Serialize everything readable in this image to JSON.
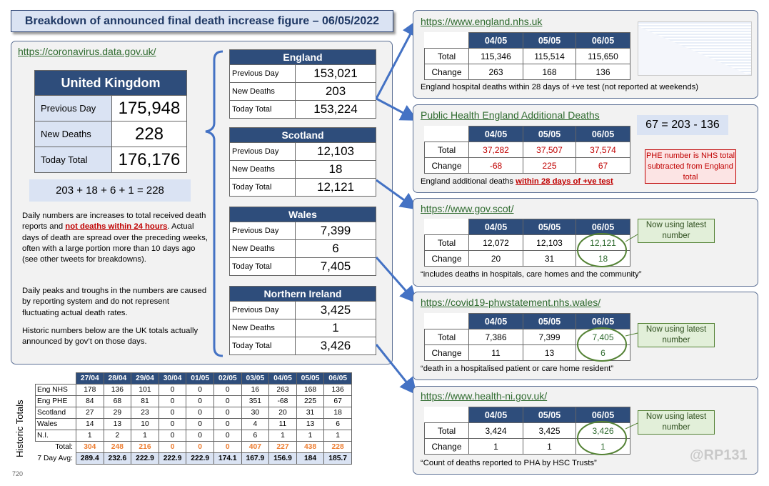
{
  "title": "Breakdown of announced final death increase figure – 06/05/2022",
  "uk": {
    "link": "https://coronavirus.data.gov.uk/",
    "header": "United Kingdom",
    "rows": [
      {
        "label": "Previous Day",
        "value": "175,948"
      },
      {
        "label": "New Deaths",
        "value": "228"
      },
      {
        "label": "Today Total",
        "value": "176,176"
      }
    ],
    "equation": "203 + 18 + 6 + 1 = 228"
  },
  "notes": {
    "p1_a": "Daily numbers are increases to total received death reports and ",
    "p1_red": "not deaths within 24 hours",
    "p1_b": ". Actual days of death are spread over the preceding weeks, often with a large portion more than 10 days ago (see other tweets for breakdowns).",
    "p2": "Daily peaks and troughs in the numbers are caused by reporting system and do not represent fluctuating actual death rates.",
    "p3": "Historic numbers below are the UK totals actually announced by gov’t on those days."
  },
  "nations": [
    {
      "name": "England",
      "rows": [
        {
          "label": "Previous Day",
          "value": "153,021"
        },
        {
          "label": "New Deaths",
          "value": "203"
        },
        {
          "label": "Today Total",
          "value": "153,224"
        }
      ]
    },
    {
      "name": "Scotland",
      "rows": [
        {
          "label": "Previous Day",
          "value": "12,103"
        },
        {
          "label": "New Deaths",
          "value": "18"
        },
        {
          "label": "Today Total",
          "value": "12,121"
        }
      ]
    },
    {
      "name": "Wales",
      "rows": [
        {
          "label": "Previous Day",
          "value": "7,399"
        },
        {
          "label": "New Deaths",
          "value": "6"
        },
        {
          "label": "Today Total",
          "value": "7,405"
        }
      ]
    },
    {
      "name": "Northern Ireland",
      "rows": [
        {
          "label": "Previous Day",
          "value": "3,425"
        },
        {
          "label": "New Deaths",
          "value": "1"
        },
        {
          "label": "Today Total",
          "value": "3,426"
        }
      ]
    }
  ],
  "sources": {
    "dates": [
      "04/05",
      "05/05",
      "06/05"
    ],
    "row_labels": [
      "Total",
      "Change"
    ],
    "nhs": {
      "link": "https://www.england.nhs.uk",
      "total": [
        "115,346",
        "115,514",
        "115,650"
      ],
      "change": [
        "263",
        "168",
        "136"
      ],
      "caption": "England hospital deaths within 28 days of +ve test (not reported at weekends)"
    },
    "phe": {
      "link": "Public Health England Additional Deaths",
      "total": [
        "37,282",
        "37,507",
        "37,574"
      ],
      "change": [
        "-68",
        "225",
        "67"
      ],
      "caption_a": "England additional deaths ",
      "caption_red": "within 28 days of +ve test",
      "formula": "67 = 203 - 136",
      "note": "PHE number is NHS total subtracted from England total"
    },
    "scot": {
      "link": "https://www.gov.scot/",
      "total": [
        "12,072",
        "12,103",
        "12,121"
      ],
      "change": [
        "20",
        "31",
        "18"
      ],
      "caption": "“includes deaths in hospitals, care homes and the community”"
    },
    "wales": {
      "link": "https://covid19-phwstatement.nhs.wales/",
      "total": [
        "7,386",
        "7,399",
        "7,405"
      ],
      "change": [
        "11",
        "13",
        "6"
      ],
      "caption": "“death in a hospitalised patient or care home resident”"
    },
    "ni": {
      "link": "https://www.health-ni.gov.uk/",
      "total": [
        "3,424",
        "3,425",
        "3,426"
      ],
      "change": [
        "1",
        "1",
        "1"
      ],
      "caption": "“Count of deaths reported to PHA by HSC Trusts”"
    },
    "badge": "Now using latest number"
  },
  "history": {
    "side_label": "Historic Totals",
    "dates": [
      "27/04",
      "28/04",
      "29/04",
      "30/04",
      "01/05",
      "02/05",
      "03/05",
      "04/05",
      "05/05",
      "06/05"
    ],
    "rows": [
      {
        "label": "Eng NHS",
        "values": [
          "178",
          "136",
          "101",
          "0",
          "0",
          "0",
          "16",
          "263",
          "168",
          "136"
        ]
      },
      {
        "label": "Eng PHE",
        "values": [
          "84",
          "68",
          "81",
          "0",
          "0",
          "0",
          "351",
          "-68",
          "225",
          "67"
        ]
      },
      {
        "label": "Scotland",
        "values": [
          "27",
          "29",
          "23",
          "0",
          "0",
          "0",
          "30",
          "20",
          "31",
          "18"
        ]
      },
      {
        "label": "Wales",
        "values": [
          "14",
          "13",
          "10",
          "0",
          "0",
          "0",
          "4",
          "11",
          "13",
          "6"
        ]
      },
      {
        "label": "N.I.",
        "values": [
          "1",
          "2",
          "1",
          "0",
          "0",
          "0",
          "6",
          "1",
          "1",
          "1"
        ]
      }
    ],
    "total_label": "Total:",
    "totals": [
      "304",
      "248",
      "216",
      "0",
      "0",
      "0",
      "407",
      "227",
      "438",
      "228"
    ],
    "avg_label": "7 Day Avg:",
    "avgs": [
      "289.4",
      "232.6",
      "222.9",
      "222.9",
      "222.9",
      "174.1",
      "167.9",
      "156.9",
      "184",
      "185.7"
    ]
  },
  "watermark": "@RP131",
  "footer_num": "720"
}
